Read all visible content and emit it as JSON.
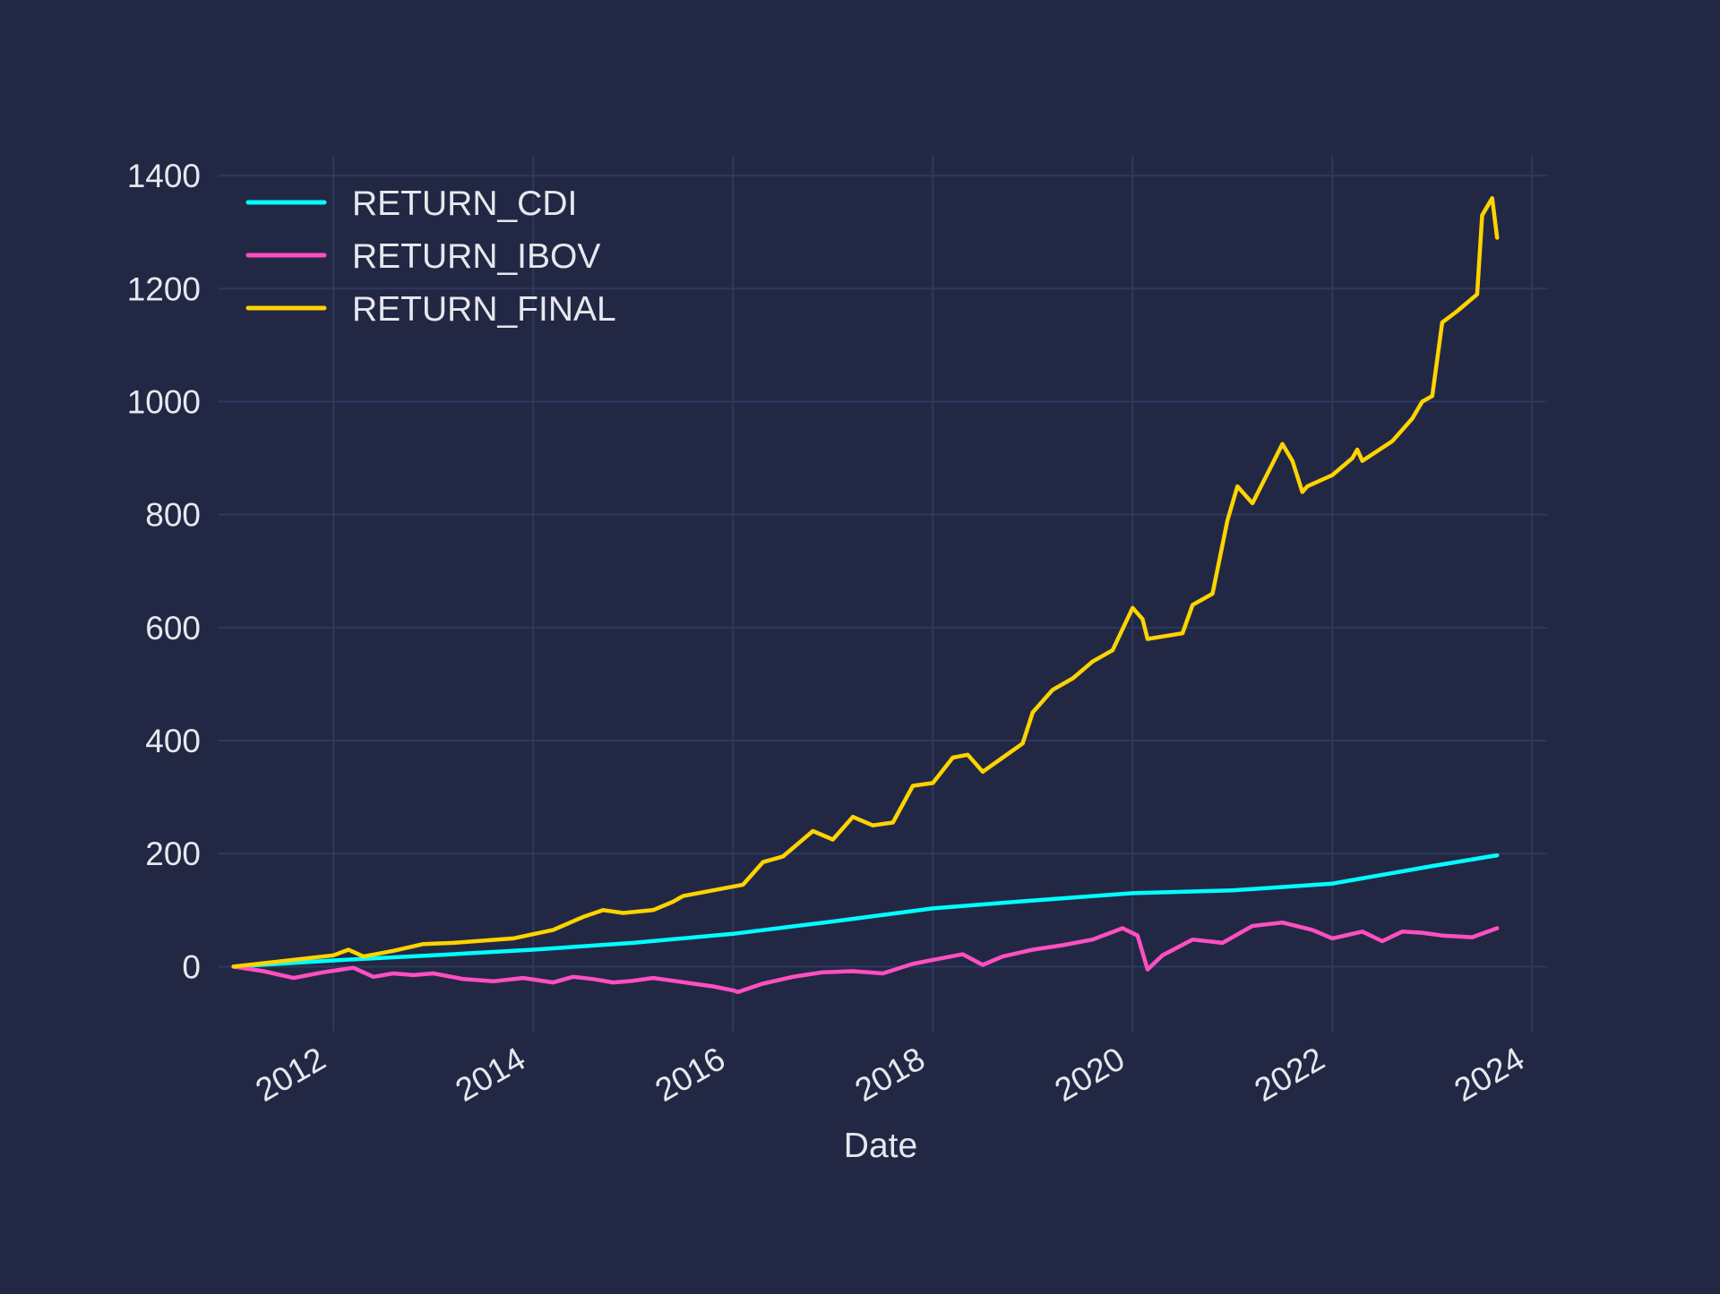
{
  "chart_data": {
    "type": "line",
    "title": "",
    "xlabel": "Date",
    "ylabel": "",
    "xlim": [
      2010.85,
      2024.15
    ],
    "ylim": [
      -115,
      1435
    ],
    "x_ticks": [
      2012,
      2014,
      2016,
      2018,
      2020,
      2022,
      2024
    ],
    "x_tick_labels": [
      "2012",
      "2014",
      "2016",
      "2018",
      "2020",
      "2022",
      "2024"
    ],
    "y_ticks": [
      0,
      200,
      400,
      600,
      800,
      1000,
      1200,
      1400
    ],
    "y_tick_labels": [
      "0",
      "200",
      "400",
      "600",
      "800",
      "1000",
      "1200",
      "1400"
    ],
    "grid": true,
    "legend_position": "top-left",
    "background_color": "#222844",
    "series": [
      {
        "name": "RETURN_CDI",
        "color": "#00ffff",
        "x": [
          2011.0,
          2012.0,
          2013.0,
          2014.0,
          2015.0,
          2016.0,
          2017.0,
          2018.0,
          2019.0,
          2020.0,
          2021.0,
          2022.0,
          2023.0,
          2023.65
        ],
        "y": [
          0,
          11,
          20,
          30,
          42,
          58,
          80,
          103,
          117,
          130,
          135,
          147,
          178,
          197
        ]
      },
      {
        "name": "RETURN_IBOV",
        "color": "#ff4fc1",
        "x": [
          2011.0,
          2011.3,
          2011.6,
          2011.9,
          2012.2,
          2012.4,
          2012.6,
          2012.8,
          2013.0,
          2013.3,
          2013.6,
          2013.9,
          2014.2,
          2014.4,
          2014.6,
          2014.8,
          2015.0,
          2015.2,
          2015.4,
          2015.6,
          2015.8,
          2016.0,
          2016.05,
          2016.3,
          2016.6,
          2016.9,
          2017.2,
          2017.5,
          2017.8,
          2018.0,
          2018.3,
          2018.5,
          2018.7,
          2019.0,
          2019.3,
          2019.6,
          2019.9,
          2020.05,
          2020.15,
          2020.3,
          2020.6,
          2020.9,
          2021.2,
          2021.5,
          2021.8,
          2022.0,
          2022.3,
          2022.5,
          2022.7,
          2022.9,
          2023.1,
          2023.4,
          2023.65
        ],
        "y": [
          0,
          -8,
          -20,
          -10,
          -2,
          -18,
          -12,
          -15,
          -12,
          -22,
          -26,
          -20,
          -28,
          -18,
          -22,
          -28,
          -25,
          -20,
          -25,
          -30,
          -35,
          -42,
          -45,
          -30,
          -18,
          -10,
          -8,
          -12,
          5,
          12,
          22,
          3,
          18,
          30,
          38,
          48,
          68,
          55,
          -5,
          20,
          48,
          42,
          72,
          78,
          65,
          50,
          62,
          45,
          62,
          60,
          55,
          52,
          68
        ]
      },
      {
        "name": "RETURN_FINAL",
        "color": "#ffd400",
        "x": [
          2011.0,
          2011.5,
          2012.0,
          2012.15,
          2012.3,
          2012.6,
          2012.9,
          2013.2,
          2013.8,
          2014.2,
          2014.5,
          2014.7,
          2014.9,
          2015.2,
          2015.4,
          2015.5,
          2016.1,
          2016.3,
          2016.5,
          2016.8,
          2017.0,
          2017.2,
          2017.4,
          2017.6,
          2017.8,
          2018.0,
          2018.2,
          2018.35,
          2018.5,
          2018.7,
          2018.9,
          2019.0,
          2019.2,
          2019.4,
          2019.6,
          2019.8,
          2020.0,
          2020.1,
          2020.15,
          2020.5,
          2020.6,
          2020.8,
          2020.95,
          2021.05,
          2021.2,
          2021.4,
          2021.5,
          2021.6,
          2021.7,
          2021.75,
          2022.0,
          2022.2,
          2022.25,
          2022.3,
          2022.6,
          2022.8,
          2022.9,
          2023.0,
          2023.1,
          2023.25,
          2023.45,
          2023.5,
          2023.6,
          2023.65
        ],
        "y": [
          0,
          10,
          20,
          30,
          18,
          28,
          40,
          42,
          50,
          65,
          88,
          100,
          95,
          100,
          115,
          125,
          145,
          185,
          195,
          240,
          225,
          265,
          250,
          255,
          320,
          325,
          370,
          375,
          345,
          370,
          395,
          450,
          490,
          510,
          540,
          560,
          635,
          615,
          580,
          590,
          640,
          660,
          790,
          850,
          820,
          890,
          925,
          895,
          840,
          850,
          870,
          900,
          915,
          895,
          930,
          970,
          1000,
          1010,
          1140,
          1160,
          1190,
          1330,
          1360,
          1290
        ]
      }
    ]
  }
}
